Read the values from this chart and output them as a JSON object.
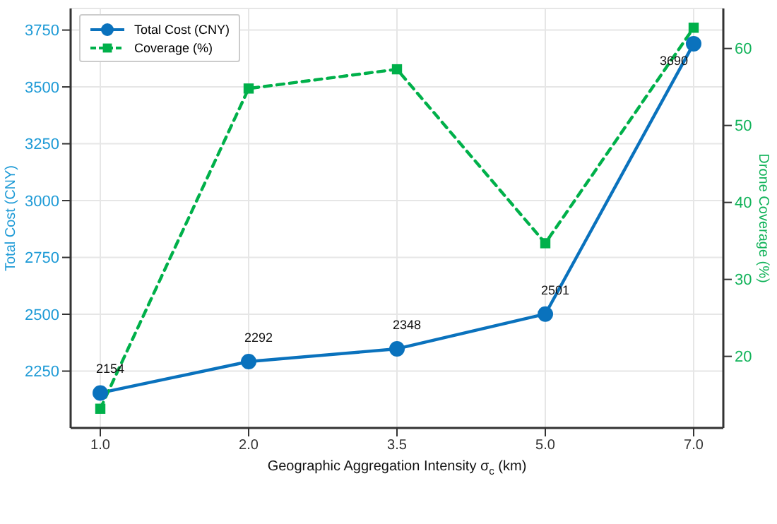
{
  "chart_data": {
    "type": "line",
    "xlabel": "Geographic Aggregation Intensity σ$_{c}$ (km)",
    "ylabel": "Total Cost (CNY)",
    "y2label": "Drone Coverage (%)",
    "categories": [
      "1.0",
      "2.0",
      "3.5",
      "5.0",
      "7.0"
    ],
    "series": [
      {
        "name": "Total Cost (CNY)",
        "color": "#0a72bd",
        "values": [
          2154,
          2292,
          2348,
          2501,
          3690
        ],
        "marker": "circle",
        "line_style": "solid",
        "value_labels": [
          "2154",
          "2292",
          "2348",
          "2501",
          "3690"
        ]
      },
      {
        "name": "Coverage (%)",
        "color": "#00b04a",
        "values": [
          13.2,
          54.8,
          57.3,
          34.7,
          62.7
        ],
        "marker": "square",
        "line_style": "dashed",
        "axis": "y2"
      }
    ],
    "ylim": [
      2000,
      3845
    ],
    "yticks": [
      2250,
      2500,
      2750,
      3000,
      3250,
      3500,
      3750
    ],
    "y2lim": [
      10.7,
      65.2
    ],
    "y2ticks": [
      20,
      30,
      40,
      50,
      60
    ],
    "grid": true,
    "legend": "top left"
  }
}
